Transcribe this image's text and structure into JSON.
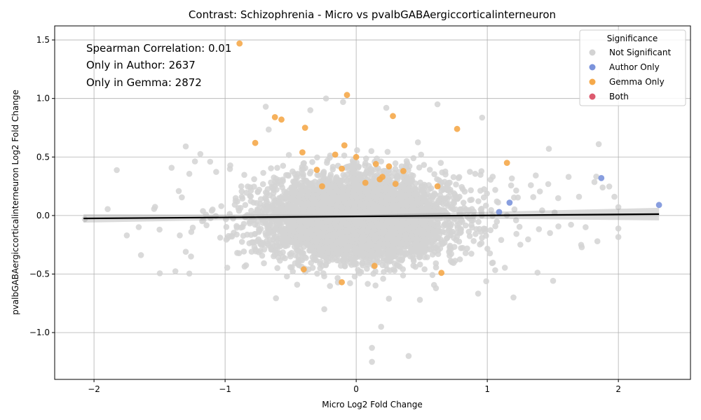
{
  "chart_data": {
    "type": "scatter",
    "title": "Contrast: Schizophrenia - Micro vs pvalbGABAergiccorticalinterneuron",
    "xlabel": "Micro Log2 Fold Change",
    "ylabel": "pvalbGABAergiccorticalinterneuron Log2 Fold Change",
    "xlim": [
      -2.3,
      2.55
    ],
    "ylim": [
      -1.4,
      1.62
    ],
    "xticks": [
      -2,
      -1,
      0,
      1,
      2
    ],
    "yticks": [
      -1.0,
      -0.5,
      0.0,
      0.5,
      1.0,
      1.5
    ],
    "grid": true,
    "annotations": [
      "Spearman Correlation: 0.01",
      "Only in Author: 2637",
      "Only in Gemma: 2872"
    ],
    "legend": {
      "title": "Significance",
      "placement": "top-right",
      "entries": [
        "Not Significant",
        "Author Only",
        "Gemma Only",
        "Both"
      ]
    },
    "colors": {
      "Not Significant": "#d3d3d3",
      "Author Only": "#7b93db",
      "Gemma Only": "#f5a94a",
      "Both": "#dc5a6e",
      "regression": "#000000"
    },
    "regression_line": {
      "x": [
        -2.08,
        2.31
      ],
      "y": [
        -0.025,
        0.012
      ]
    },
    "series": [
      {
        "name": "Gemma Only",
        "x": [
          -0.89,
          -0.07,
          -0.62,
          -0.57,
          0.28,
          -0.39,
          0.77,
          -0.77,
          -0.41,
          -0.09,
          -0.16,
          1.15,
          -0.3,
          -0.11,
          0.18,
          0.15,
          0.2,
          0.3,
          0.36,
          0.62,
          -0.4,
          0.65,
          -0.11,
          0.14,
          0.25,
          0.0,
          -0.26,
          0.07
        ],
        "y": [
          1.47,
          1.03,
          0.84,
          0.82,
          0.85,
          0.75,
          0.74,
          0.62,
          0.54,
          0.6,
          0.52,
          0.45,
          0.39,
          0.4,
          0.31,
          0.44,
          0.33,
          0.27,
          0.38,
          0.25,
          -0.46,
          -0.49,
          -0.57,
          -0.43,
          0.42,
          0.5,
          0.25,
          0.28
        ]
      },
      {
        "name": "Author Only",
        "x": [
          1.87,
          2.31,
          1.17,
          1.09
        ],
        "y": [
          0.32,
          0.09,
          0.11,
          0.03
        ]
      }
    ]
  }
}
